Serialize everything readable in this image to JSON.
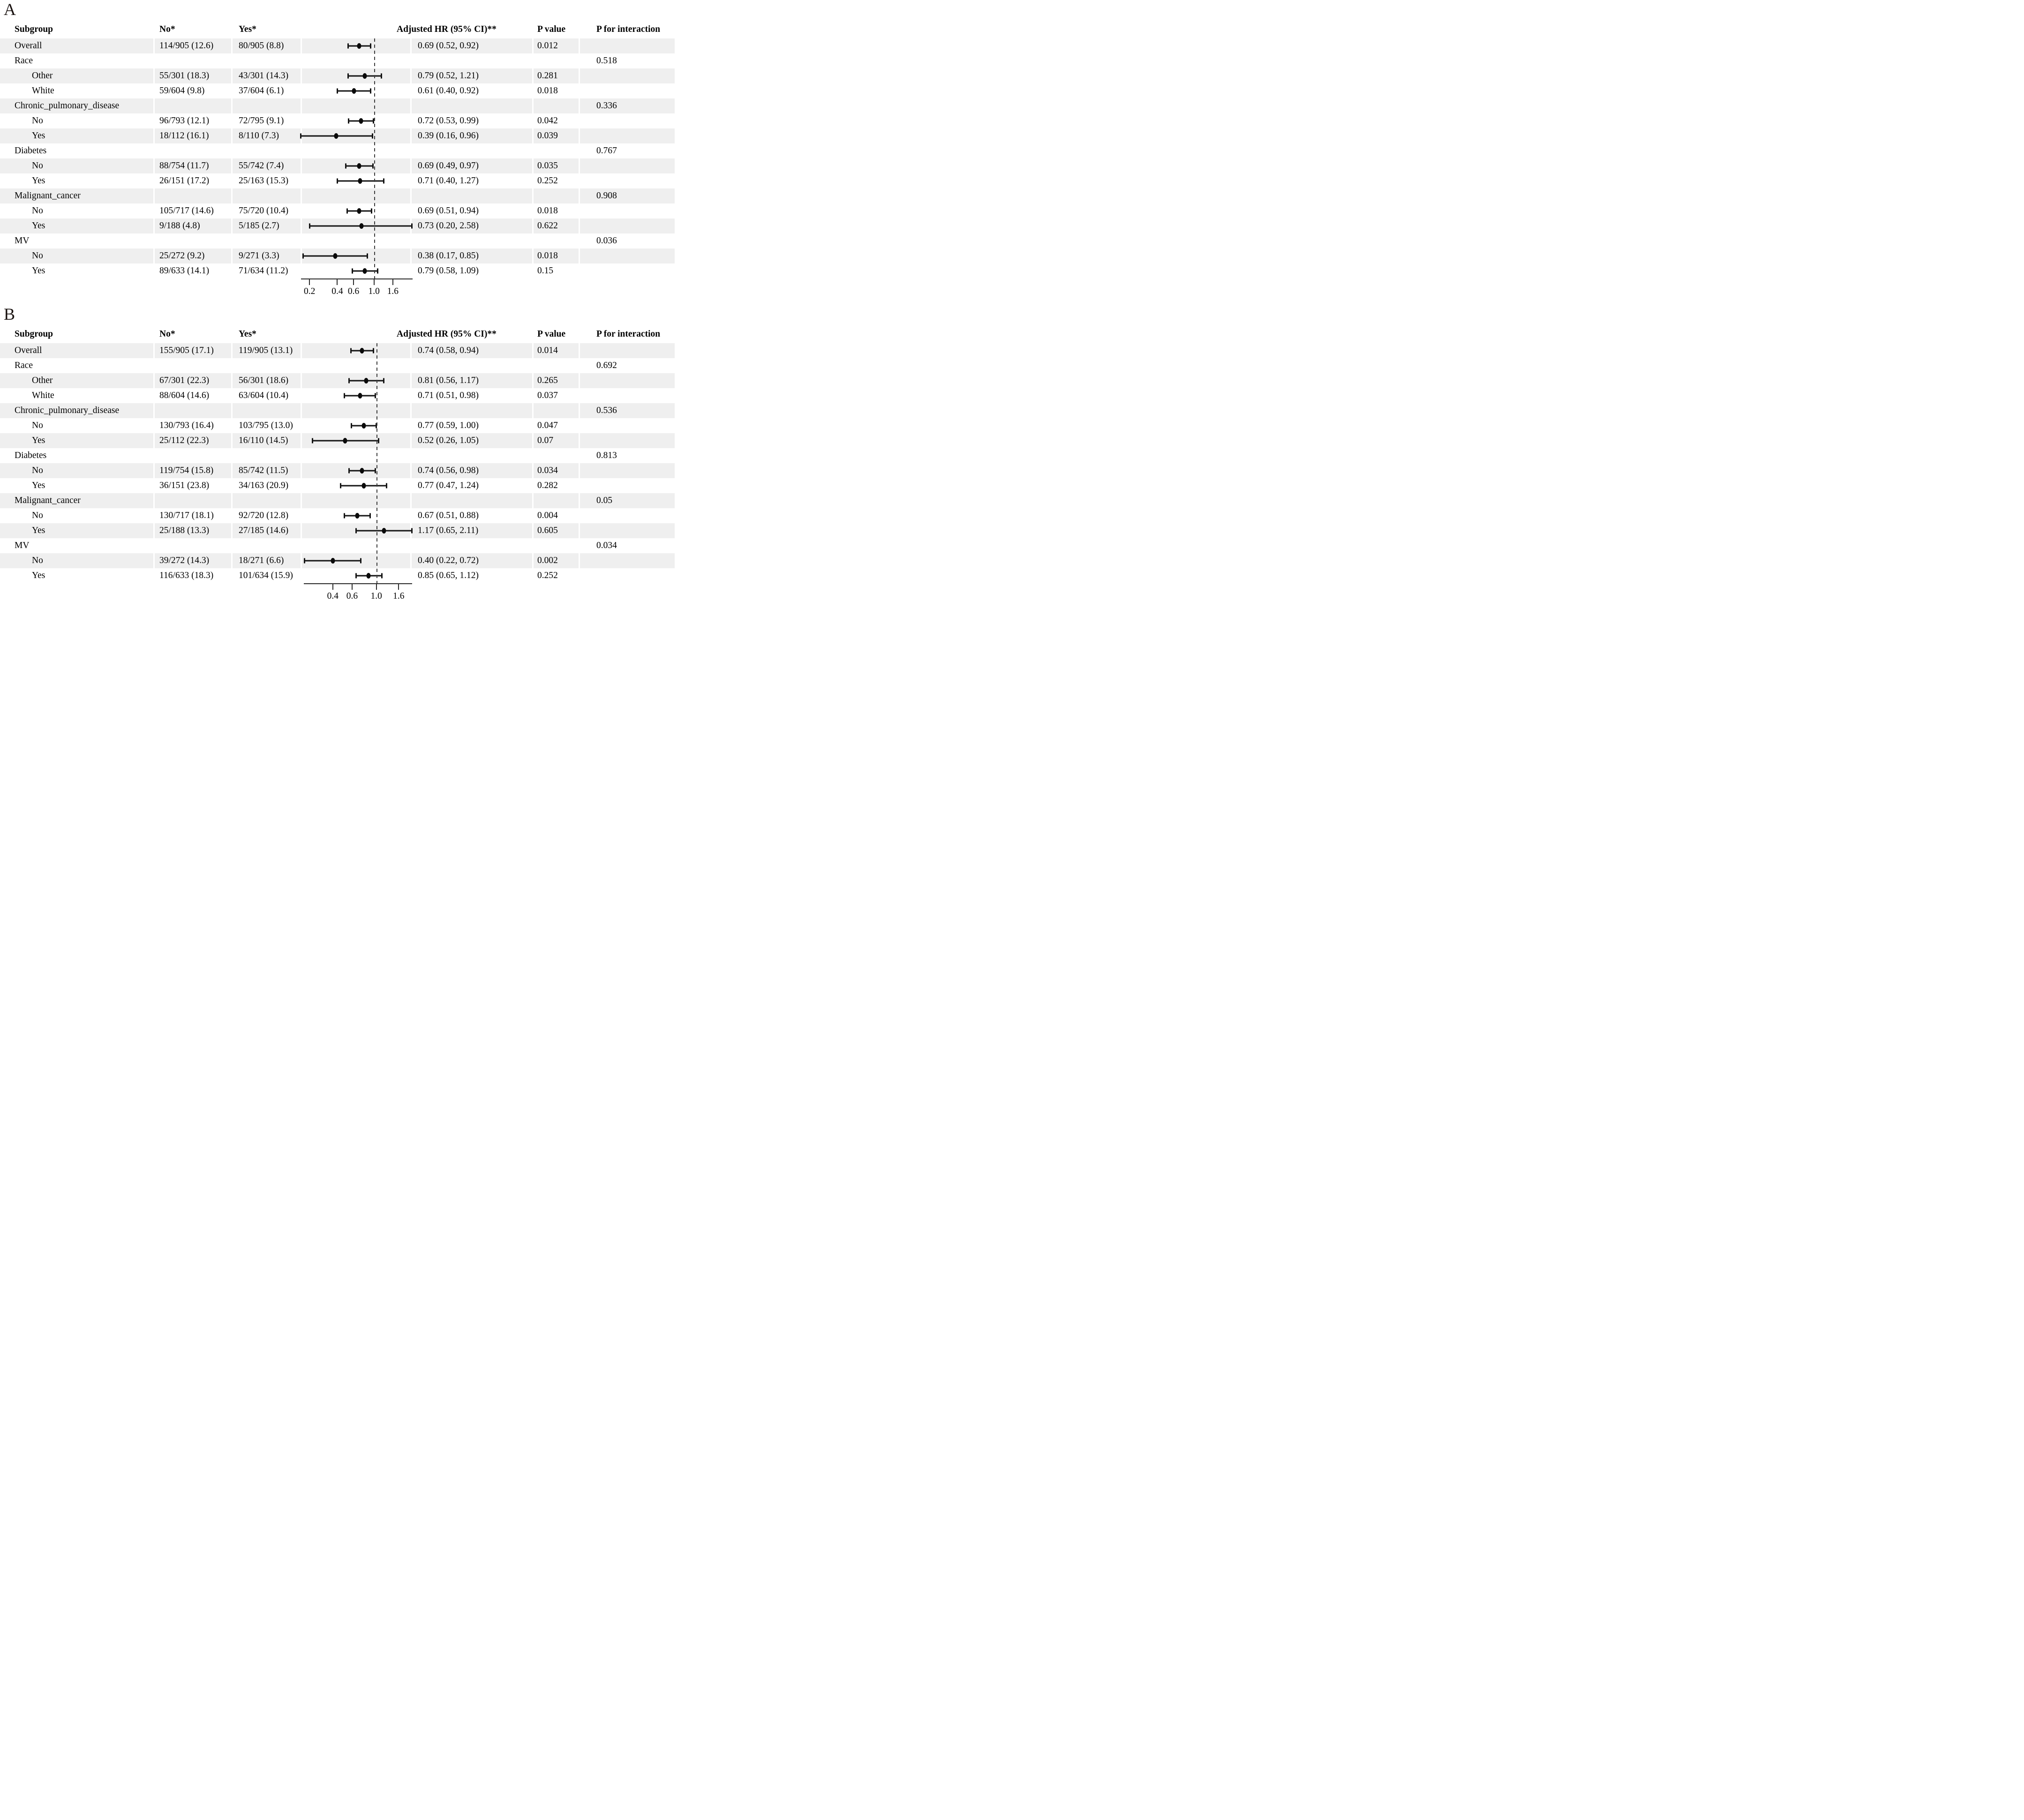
{
  "figure": {
    "panel_a_label": "A",
    "panel_b_label": "B"
  },
  "colors": {
    "row_shading": "#efefef",
    "marker": "#0a0a0a",
    "axis": "#2b2b2b",
    "reference_dash": "#3c3c3c"
  },
  "chart_data": [
    {
      "type": "forest",
      "panel": "A",
      "layout_hints": {
        "scale": "log",
        "reference_line": 1.0,
        "row_shading": "alternating starting with first row"
      },
      "columns": {
        "subgroup": "Subgroup",
        "no": "No*",
        "yes": "Yes*",
        "hr": "Adjusted HR (95% CI)**",
        "p": "P value",
        "p_interaction": "P for interaction"
      },
      "axis": {
        "ticks": [
          "0.2",
          "0.4",
          "0.6",
          "1.0",
          "1.6"
        ],
        "reference": 1.0
      },
      "rows": [
        {
          "subgroup": "Overall",
          "indent": false,
          "no": "114/905 (12.6)",
          "yes": "80/905 (8.8)",
          "hr": 0.69,
          "ci_low": 0.52,
          "ci_high": 0.92,
          "hr_ci": "0.69 (0.52, 0.92)",
          "p": "0.012",
          "p_interaction": ""
        },
        {
          "subgroup": "Race",
          "indent": false,
          "no": "",
          "yes": "",
          "hr": null,
          "ci_low": null,
          "ci_high": null,
          "hr_ci": "",
          "p": "",
          "p_interaction": "0.518"
        },
        {
          "subgroup": "Other",
          "indent": true,
          "no": "55/301 (18.3)",
          "yes": "43/301 (14.3)",
          "hr": 0.79,
          "ci_low": 0.52,
          "ci_high": 1.21,
          "hr_ci": "0.79 (0.52, 1.21)",
          "p": "0.281",
          "p_interaction": ""
        },
        {
          "subgroup": "White",
          "indent": true,
          "no": "59/604 (9.8)",
          "yes": "37/604 (6.1)",
          "hr": 0.61,
          "ci_low": 0.4,
          "ci_high": 0.92,
          "hr_ci": "0.61 (0.40, 0.92)",
          "p": "0.018",
          "p_interaction": ""
        },
        {
          "subgroup": "Chronic_pulmonary_disease",
          "indent": false,
          "no": "",
          "yes": "",
          "hr": null,
          "ci_low": null,
          "ci_high": null,
          "hr_ci": "",
          "p": "",
          "p_interaction": "0.336"
        },
        {
          "subgroup": "No",
          "indent": true,
          "no": "96/793 (12.1)",
          "yes": "72/795 (9.1)",
          "hr": 0.72,
          "ci_low": 0.53,
          "ci_high": 0.99,
          "hr_ci": "0.72 (0.53, 0.99)",
          "p": "0.042",
          "p_interaction": ""
        },
        {
          "subgroup": "Yes",
          "indent": true,
          "no": "18/112 (16.1)",
          "yes": "8/110 (7.3)",
          "hr": 0.39,
          "ci_low": 0.16,
          "ci_high": 0.96,
          "hr_ci": "0.39 (0.16, 0.96)",
          "p": "0.039",
          "p_interaction": ""
        },
        {
          "subgroup": "Diabetes",
          "indent": false,
          "no": "",
          "yes": "",
          "hr": null,
          "ci_low": null,
          "ci_high": null,
          "hr_ci": "",
          "p": "",
          "p_interaction": "0.767"
        },
        {
          "subgroup": "No",
          "indent": true,
          "no": "88/754 (11.7)",
          "yes": "55/742 (7.4)",
          "hr": 0.69,
          "ci_low": 0.49,
          "ci_high": 0.97,
          "hr_ci": "0.69 (0.49, 0.97)",
          "p": "0.035",
          "p_interaction": ""
        },
        {
          "subgroup": "Yes",
          "indent": true,
          "no": "26/151 (17.2)",
          "yes": "25/163 (15.3)",
          "hr": 0.71,
          "ci_low": 0.4,
          "ci_high": 1.27,
          "hr_ci": "0.71 (0.40, 1.27)",
          "p": "0.252",
          "p_interaction": ""
        },
        {
          "subgroup": "Malignant_cancer",
          "indent": false,
          "no": "",
          "yes": "",
          "hr": null,
          "ci_low": null,
          "ci_high": null,
          "hr_ci": "",
          "p": "",
          "p_interaction": "0.908"
        },
        {
          "subgroup": "No",
          "indent": true,
          "no": "105/717 (14.6)",
          "yes": "75/720 (10.4)",
          "hr": 0.69,
          "ci_low": 0.51,
          "ci_high": 0.94,
          "hr_ci": "0.69 (0.51, 0.94)",
          "p": "0.018",
          "p_interaction": ""
        },
        {
          "subgroup": "Yes",
          "indent": true,
          "no": "9/188 (4.8)",
          "yes": "5/185 (2.7)",
          "hr": 0.73,
          "ci_low": 0.2,
          "ci_high": 2.58,
          "hr_ci": "0.73 (0.20, 2.58)",
          "p": "0.622",
          "p_interaction": ""
        },
        {
          "subgroup": "MV",
          "indent": false,
          "no": "",
          "yes": "",
          "hr": null,
          "ci_low": null,
          "ci_high": null,
          "hr_ci": "",
          "p": "",
          "p_interaction": "0.036"
        },
        {
          "subgroup": "No",
          "indent": true,
          "no": "25/272 (9.2)",
          "yes": "9/271 (3.3)",
          "hr": 0.38,
          "ci_low": 0.17,
          "ci_high": 0.85,
          "hr_ci": "0.38 (0.17, 0.85)",
          "p": "0.018",
          "p_interaction": ""
        },
        {
          "subgroup": "Yes",
          "indent": true,
          "no": "89/633 (14.1)",
          "yes": "71/634 (11.2)",
          "hr": 0.79,
          "ci_low": 0.58,
          "ci_high": 1.09,
          "hr_ci": "0.79 (0.58, 1.09)",
          "p": "0.15",
          "p_interaction": ""
        }
      ]
    },
    {
      "type": "forest",
      "panel": "B",
      "layout_hints": {
        "scale": "log",
        "reference_line": 1.0,
        "row_shading": "alternating starting with first row"
      },
      "columns": {
        "subgroup": "Subgroup",
        "no": "No*",
        "yes": "Yes*",
        "hr": "Adjusted HR (95% CI)**",
        "p": "P value",
        "p_interaction": "P for interaction"
      },
      "axis": {
        "ticks": [
          "0.4",
          "0.6",
          "1.0",
          "1.6"
        ],
        "reference": 1.0
      },
      "rows": [
        {
          "subgroup": "Overall",
          "indent": false,
          "no": "155/905 (17.1)",
          "yes": "119/905 (13.1)",
          "hr": 0.74,
          "ci_low": 0.58,
          "ci_high": 0.94,
          "hr_ci": "0.74 (0.58, 0.94)",
          "p": "0.014",
          "p_interaction": ""
        },
        {
          "subgroup": "Race",
          "indent": false,
          "no": "",
          "yes": "",
          "hr": null,
          "ci_low": null,
          "ci_high": null,
          "hr_ci": "",
          "p": "",
          "p_interaction": "0.692"
        },
        {
          "subgroup": "Other",
          "indent": true,
          "no": "67/301 (22.3)",
          "yes": "56/301 (18.6)",
          "hr": 0.81,
          "ci_low": 0.56,
          "ci_high": 1.17,
          "hr_ci": "0.81 (0.56, 1.17)",
          "p": "0.265",
          "p_interaction": ""
        },
        {
          "subgroup": "White",
          "indent": true,
          "no": "88/604 (14.6)",
          "yes": "63/604 (10.4)",
          "hr": 0.71,
          "ci_low": 0.51,
          "ci_high": 0.98,
          "hr_ci": "0.71 (0.51, 0.98)",
          "p": "0.037",
          "p_interaction": ""
        },
        {
          "subgroup": "Chronic_pulmonary_disease",
          "indent": false,
          "no": "",
          "yes": "",
          "hr": null,
          "ci_low": null,
          "ci_high": null,
          "hr_ci": "",
          "p": "",
          "p_interaction": "0.536"
        },
        {
          "subgroup": "No",
          "indent": true,
          "no": "130/793 (16.4)",
          "yes": "103/795 (13.0)",
          "hr": 0.77,
          "ci_low": 0.59,
          "ci_high": 1.0,
          "hr_ci": "0.77 (0.59, 1.00)",
          "p": "0.047",
          "p_interaction": ""
        },
        {
          "subgroup": "Yes",
          "indent": true,
          "no": "25/112 (22.3)",
          "yes": "16/110 (14.5)",
          "hr": 0.52,
          "ci_low": 0.26,
          "ci_high": 1.05,
          "hr_ci": "0.52 (0.26, 1.05)",
          "p": "0.07",
          "p_interaction": ""
        },
        {
          "subgroup": "Diabetes",
          "indent": false,
          "no": "",
          "yes": "",
          "hr": null,
          "ci_low": null,
          "ci_high": null,
          "hr_ci": "",
          "p": "",
          "p_interaction": "0.813"
        },
        {
          "subgroup": "No",
          "indent": true,
          "no": "119/754 (15.8)",
          "yes": "85/742 (11.5)",
          "hr": 0.74,
          "ci_low": 0.56,
          "ci_high": 0.98,
          "hr_ci": "0.74 (0.56, 0.98)",
          "p": "0.034",
          "p_interaction": ""
        },
        {
          "subgroup": "Yes",
          "indent": true,
          "no": "36/151 (23.8)",
          "yes": "34/163 (20.9)",
          "hr": 0.77,
          "ci_low": 0.47,
          "ci_high": 1.24,
          "hr_ci": "0.77 (0.47, 1.24)",
          "p": "0.282",
          "p_interaction": ""
        },
        {
          "subgroup": "Malignant_cancer",
          "indent": false,
          "no": "",
          "yes": "",
          "hr": null,
          "ci_low": null,
          "ci_high": null,
          "hr_ci": "",
          "p": "",
          "p_interaction": "0.05"
        },
        {
          "subgroup": "No",
          "indent": true,
          "no": "130/717 (18.1)",
          "yes": "92/720 (12.8)",
          "hr": 0.67,
          "ci_low": 0.51,
          "ci_high": 0.88,
          "hr_ci": "0.67 (0.51, 0.88)",
          "p": "0.004",
          "p_interaction": ""
        },
        {
          "subgroup": "Yes",
          "indent": true,
          "no": "25/188 (13.3)",
          "yes": "27/185 (14.6)",
          "hr": 1.17,
          "ci_low": 0.65,
          "ci_high": 2.11,
          "hr_ci": "1.17 (0.65, 2.11)",
          "p": "0.605",
          "p_interaction": ""
        },
        {
          "subgroup": "MV",
          "indent": false,
          "no": "",
          "yes": "",
          "hr": null,
          "ci_low": null,
          "ci_high": null,
          "hr_ci": "",
          "p": "",
          "p_interaction": "0.034"
        },
        {
          "subgroup": "No",
          "indent": true,
          "no": "39/272 (14.3)",
          "yes": "18/271 (6.6)",
          "hr": 0.4,
          "ci_low": 0.22,
          "ci_high": 0.72,
          "hr_ci": "0.40 (0.22, 0.72)",
          "p": "0.002",
          "p_interaction": ""
        },
        {
          "subgroup": "Yes",
          "indent": true,
          "no": "116/633 (18.3)",
          "yes": "101/634 (15.9)",
          "hr": 0.85,
          "ci_low": 0.65,
          "ci_high": 1.12,
          "hr_ci": "0.85 (0.65, 1.12)",
          "p": "0.252",
          "p_interaction": ""
        }
      ]
    }
  ]
}
